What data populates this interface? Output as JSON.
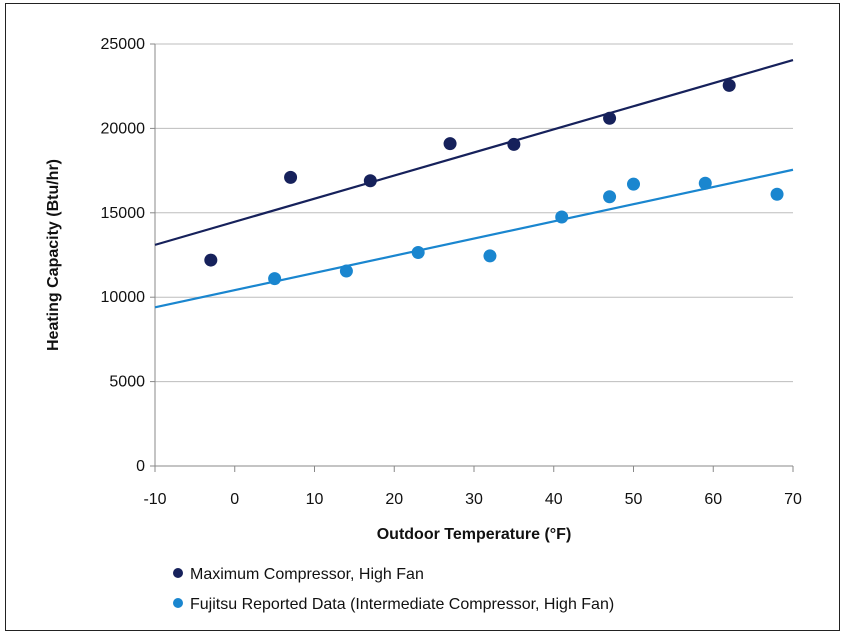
{
  "chart_data": {
    "type": "scatter",
    "title": "",
    "xlabel": "Outdoor Temperature (°F)",
    "ylabel": "Heating Capacity (Btu/hr)",
    "xlim": [
      -10,
      70
    ],
    "ylim": [
      0,
      25000
    ],
    "xticks": [
      -10,
      0,
      10,
      20,
      30,
      40,
      50,
      60,
      70
    ],
    "yticks": [
      0,
      5000,
      10000,
      15000,
      20000,
      25000
    ],
    "grid": "horizontal",
    "legend_position": "bottom",
    "series": [
      {
        "name": "Maximum Compressor, High Fan",
        "color": "#16215b",
        "points": [
          {
            "x": -3,
            "y": 12200
          },
          {
            "x": 7,
            "y": 17100
          },
          {
            "x": 17,
            "y": 16900
          },
          {
            "x": 27,
            "y": 19100
          },
          {
            "x": 35,
            "y": 19050
          },
          {
            "x": 47,
            "y": 20600
          },
          {
            "x": 62,
            "y": 22550
          }
        ],
        "trendline": {
          "x": [
            -10,
            70
          ],
          "y": [
            13100,
            24050
          ]
        }
      },
      {
        "name": "Fujitsu Reported Data (Intermediate Compressor, High Fan)",
        "color": "#1a86cf",
        "points": [
          {
            "x": 5,
            "y": 11100
          },
          {
            "x": 14,
            "y": 11550
          },
          {
            "x": 23,
            "y": 12650
          },
          {
            "x": 32,
            "y": 12450
          },
          {
            "x": 41,
            "y": 14750
          },
          {
            "x": 47,
            "y": 15950
          },
          {
            "x": 50,
            "y": 16700
          },
          {
            "x": 59,
            "y": 16750
          },
          {
            "x": 68,
            "y": 16100
          }
        ],
        "trendline": {
          "x": [
            -10,
            70
          ],
          "y": [
            9400,
            17550
          ]
        }
      }
    ]
  }
}
